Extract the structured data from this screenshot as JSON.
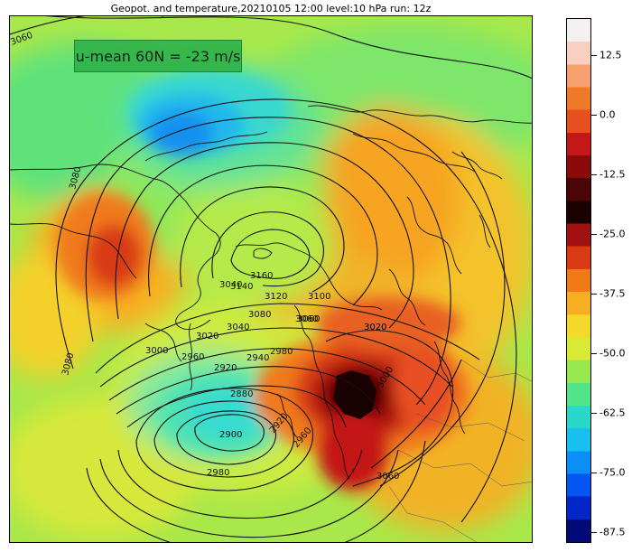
{
  "title": "Geopot. and temperature,20210105 12:00 level:10 hPa run: 12z",
  "annotation": "u-mean 60N = -23 m/s",
  "colorbar": {
    "labels": [
      "12.5",
      "0.0",
      "-12.5",
      "-25.0",
      "-37.5",
      "-50.0",
      "-62.5",
      "-75.0",
      "-87.5"
    ],
    "colors": [
      "#f5f0f0",
      "#f7d0c0",
      "#f6a070",
      "#f07a2a",
      "#e85020",
      "#c41818",
      "#8a0a0a",
      "#4a0505",
      "#1a0202",
      "#a01010",
      "#d83a14",
      "#f07a18",
      "#f7ae22",
      "#f4d82a",
      "#d8ea36",
      "#98e850",
      "#52e488",
      "#28d8c8",
      "#18c0ee",
      "#0a8ef8",
      "#0456f2",
      "#0226c8",
      "#020a78"
    ]
  },
  "contour_labels": [
    {
      "text": "3080"
    },
    {
      "text": "3060"
    },
    {
      "text": "3160"
    },
    {
      "text": "3140"
    },
    {
      "text": "3120"
    },
    {
      "text": "3100"
    },
    {
      "text": "3080"
    },
    {
      "text": "3060"
    },
    {
      "text": "3040"
    },
    {
      "text": "3020"
    },
    {
      "text": "3000"
    },
    {
      "text": "2980"
    },
    {
      "text": "2960"
    },
    {
      "text": "2940"
    },
    {
      "text": "2920"
    },
    {
      "text": "2880"
    },
    {
      "text": "2900"
    },
    {
      "text": "2920"
    },
    {
      "text": "2960"
    },
    {
      "text": "2980"
    },
    {
      "text": "3000"
    },
    {
      "text": "3020"
    },
    {
      "text": "3060"
    },
    {
      "text": "3080"
    },
    {
      "text": "3040"
    },
    {
      "text": "3020"
    },
    {
      "text": "3060"
    }
  ]
}
